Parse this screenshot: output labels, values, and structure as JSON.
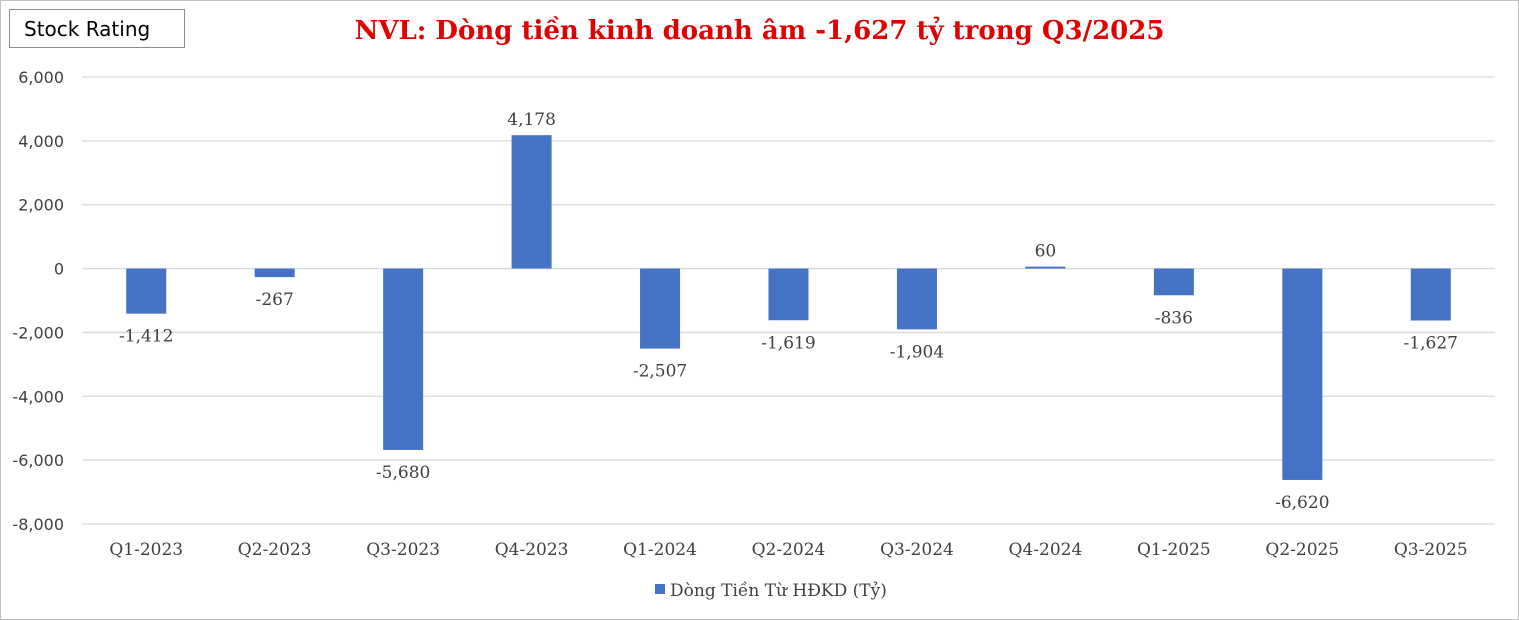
{
  "badge": "Stock Rating",
  "chart_data": {
    "type": "bar",
    "title": "NVL: Dòng tiền kinh doanh âm -1,627 tỷ trong Q3/2025",
    "categories": [
      "Q1-2023",
      "Q2-2023",
      "Q3-2023",
      "Q4-2023",
      "Q1-2024",
      "Q2-2024",
      "Q3-2024",
      "Q4-2024",
      "Q1-2025",
      "Q2-2025",
      "Q3-2025"
    ],
    "series": [
      {
        "name": "Dòng Tiền Từ HĐKD (Tỷ)",
        "values": [
          -1412,
          -267,
          -5680,
          4178,
          -2507,
          -1619,
          -1904,
          60,
          -836,
          -6620,
          -1627
        ],
        "color": "#4472c4"
      }
    ],
    "data_labels": [
      "-1,412",
      "-267",
      "-5,680",
      "4,178",
      "-2,507",
      "-1,619",
      "-1,904",
      "60",
      "-836",
      "-6,620",
      "-1,627"
    ],
    "y_ticks": [
      "6,000",
      "4,000",
      "2,000",
      "0",
      "-2,000",
      "-4,000",
      "-6,000",
      "-8,000"
    ],
    "ylim": [
      -8000,
      6000
    ],
    "grid": true,
    "legend_position": "bottom"
  }
}
